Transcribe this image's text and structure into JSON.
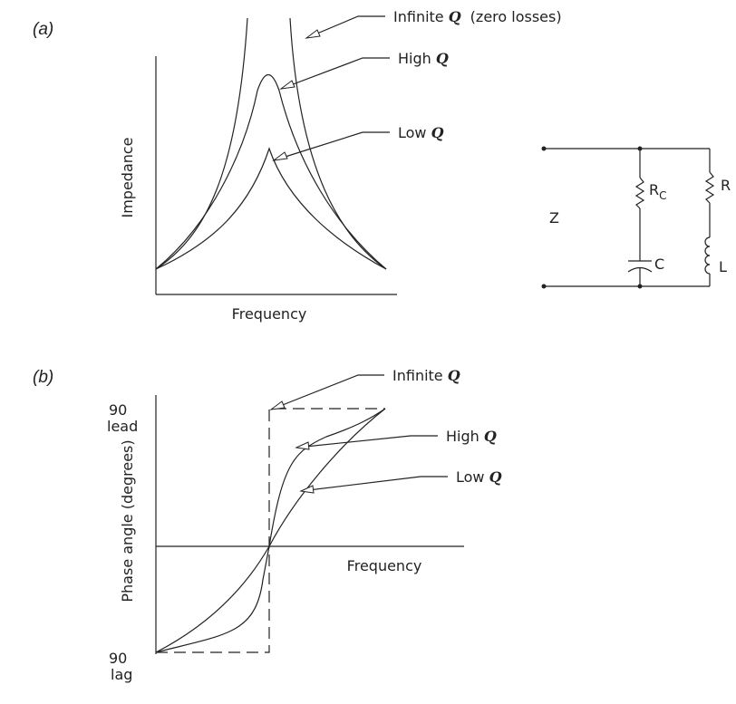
{
  "panel_a": {
    "label_open": "(",
    "label_letter": "a",
    "label_close": ")",
    "y_axis_label": "Impedance",
    "x_axis_label": "Frequency",
    "callouts": {
      "infinite": {
        "text": "Infinite ",
        "q": "Q",
        "suffix": "(zero losses)"
      },
      "high": {
        "text": "High ",
        "q": "Q"
      },
      "low": {
        "text": "Low ",
        "q": "Q"
      }
    }
  },
  "circuit": {
    "z_label": "Z",
    "rc_label": "R",
    "rc_subscript": "C",
    "c_label": "C",
    "r_label": "R",
    "l_label": "L"
  },
  "panel_b": {
    "label_open": "(",
    "label_letter": "b",
    "label_close": ")",
    "y_axis_label": "Phase angle (degrees)",
    "x_axis_label": "Frequency",
    "top_value": "90",
    "top_word": "lead",
    "bottom_value": "90",
    "bottom_word": "lag",
    "callouts": {
      "infinite": {
        "text": "Infinite ",
        "q": "Q"
      },
      "high": {
        "text": "High ",
        "q": "Q"
      },
      "low": {
        "text": "Low ",
        "q": "Q"
      }
    }
  }
}
